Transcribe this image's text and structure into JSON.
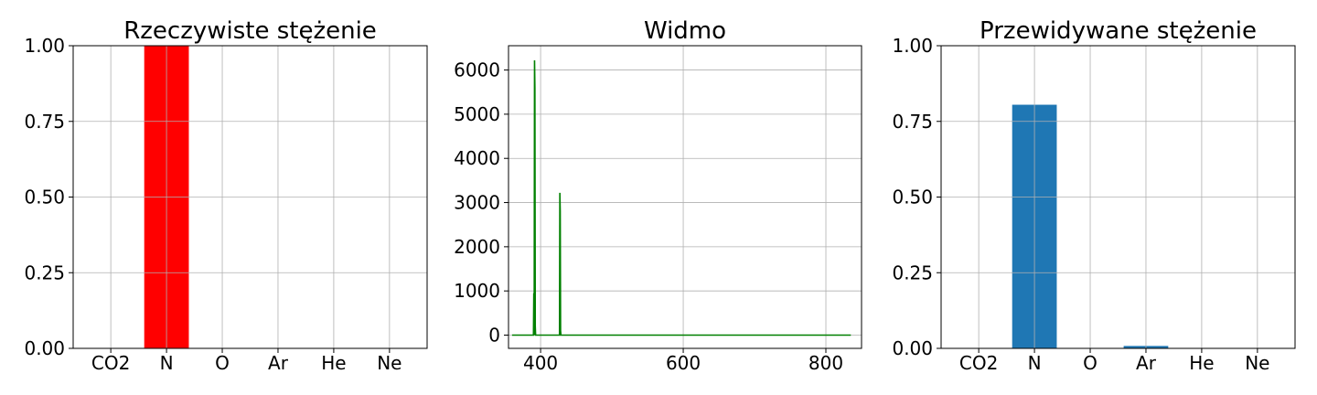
{
  "chart_data": [
    {
      "type": "bar",
      "title": "Rzeczywiste stężenie",
      "categories": [
        "CO2",
        "N",
        "O",
        "Ar",
        "He",
        "Ne"
      ],
      "values": [
        0,
        1.0,
        0,
        0,
        0,
        0
      ],
      "ylim": [
        0,
        1
      ],
      "yticks": [
        "0.00",
        "0.25",
        "0.50",
        "0.75",
        "1.00"
      ],
      "bar_color": "#ff0000",
      "grid": true
    },
    {
      "type": "line",
      "title": "Widmo",
      "xlim": [
        355,
        850
      ],
      "ylim": [
        -300,
        6550
      ],
      "xticks": [
        "400",
        "600",
        "800"
      ],
      "yticks": [
        "0",
        "1000",
        "2000",
        "3000",
        "4000",
        "5000",
        "6000"
      ],
      "series": [
        {
          "color": "#008000",
          "x": [
            360,
            390,
            390.5,
            391,
            391.5,
            392,
            392.5,
            393,
            426.5,
            427,
            427.5,
            428,
            428.5,
            835
          ],
          "y": [
            0,
            0,
            950,
            0,
            6220,
            5600,
            200,
            0,
            0,
            3220,
            2800,
            100,
            0,
            0
          ]
        }
      ],
      "grid": true
    },
    {
      "type": "bar",
      "title": "Przewidywane stężenie",
      "categories": [
        "CO2",
        "N",
        "O",
        "Ar",
        "He",
        "Ne"
      ],
      "values": [
        0,
        0.805,
        0,
        0.008,
        0,
        0
      ],
      "ylim": [
        0,
        1
      ],
      "yticks": [
        "0.00",
        "0.25",
        "0.50",
        "0.75",
        "1.00"
      ],
      "bar_color": "#1f77b4",
      "grid": true
    }
  ]
}
